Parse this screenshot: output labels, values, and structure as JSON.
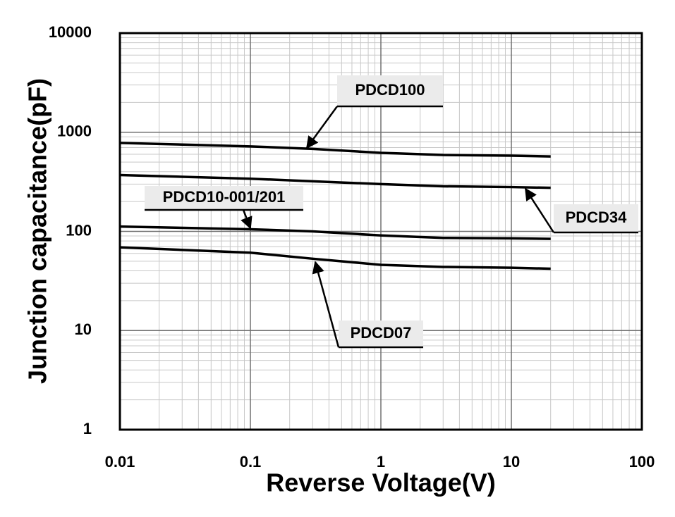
{
  "chart_data": {
    "type": "line",
    "x_label": "Reverse Voltage(V)",
    "y_label": "Junction capacitance(pF)",
    "x_log": true,
    "y_log": true,
    "grid": true,
    "minor_grid": true,
    "xlim": [
      0.01,
      100
    ],
    "xticks": [
      0.01,
      0.1,
      1,
      10,
      100
    ],
    "ylim": [
      1,
      10000
    ],
    "yticks": [
      1,
      10,
      100,
      1000,
      10000
    ],
    "x": [
      0.01,
      0.1,
      0.3,
      1,
      3,
      10,
      20
    ],
    "series": [
      {
        "name": "PDCD100",
        "color": "#000000",
        "values": [
          780,
          720,
          680,
          620,
          590,
          580,
          570
        ]
      },
      {
        "name": "PDCD34",
        "color": "#000000",
        "values": [
          370,
          340,
          320,
          300,
          285,
          280,
          275
        ]
      },
      {
        "name": "PDCD10-001/201",
        "color": "#000000",
        "values": [
          112,
          105,
          100,
          91,
          86,
          85,
          84
        ]
      },
      {
        "name": "PDCD07",
        "color": "#000000",
        "values": [
          69,
          61,
          53,
          46,
          43.8,
          43,
          42
        ]
      }
    ]
  }
}
